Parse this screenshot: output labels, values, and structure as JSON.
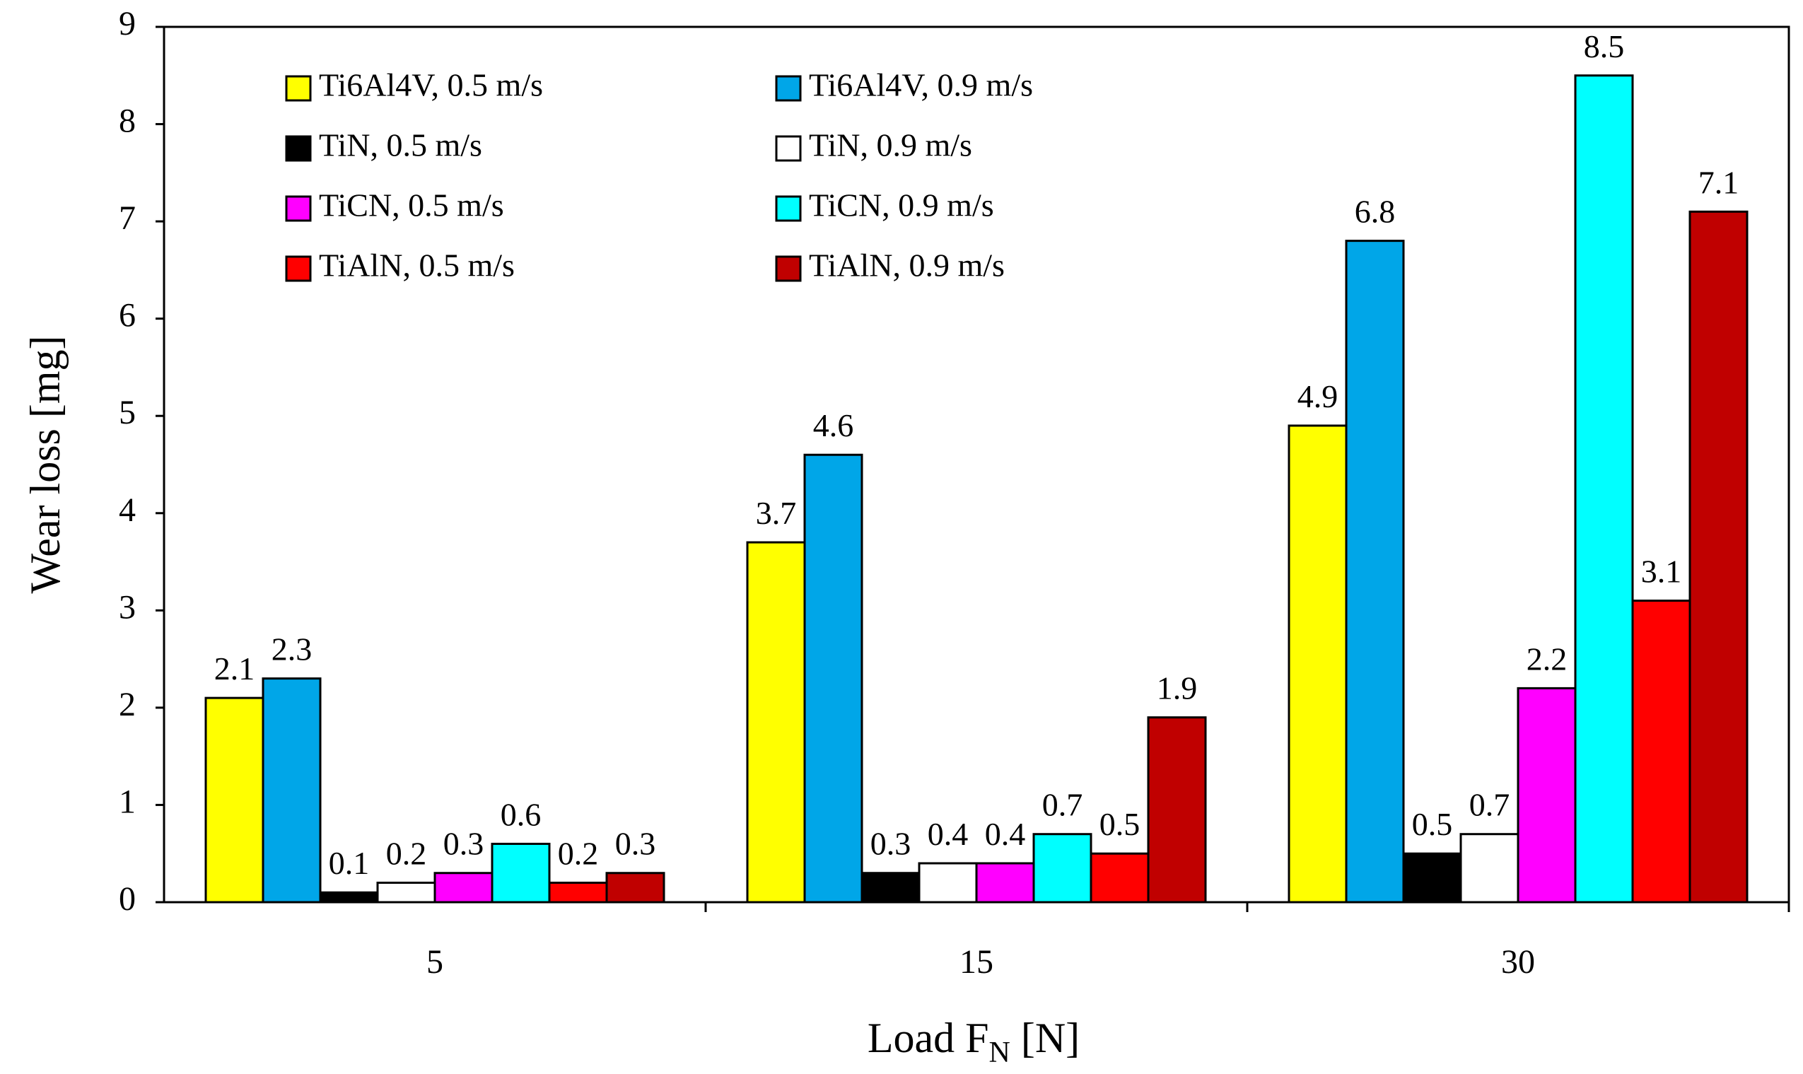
{
  "chart_data": {
    "type": "bar",
    "title": "",
    "xlabel": "Load F",
    "xlabel_subscript": "N",
    "xlabel_suffix": " [N]",
    "ylabel": "Wear loss [mg]",
    "ylim": [
      0,
      9
    ],
    "yticks": [
      "0",
      "1",
      "2",
      "3",
      "4",
      "5",
      "6",
      "7",
      "8",
      "9"
    ],
    "categories": [
      "5",
      "15",
      "30"
    ],
    "grid": false,
    "legend_position": "top-left",
    "series": [
      {
        "name": "Ti6Al4V, 0.5 m/s",
        "color": "#ffff00",
        "values": [
          2.1,
          3.7,
          4.9
        ],
        "labels": [
          "2.1",
          "3.7",
          "4.9"
        ]
      },
      {
        "name": "Ti6Al4V, 0.9 m/s",
        "color": "#00a6e8",
        "values": [
          2.3,
          4.6,
          6.8
        ],
        "labels": [
          "2.3",
          "4.6",
          "6.8"
        ]
      },
      {
        "name": "TiN, 0.5 m/s",
        "color": "#000000",
        "values": [
          0.1,
          0.3,
          0.5
        ],
        "labels": [
          "0.1",
          "0.3",
          "0.5"
        ]
      },
      {
        "name": "TiN, 0.9 m/s",
        "color": "#ffffff",
        "values": [
          0.2,
          0.4,
          0.7
        ],
        "labels": [
          "0.2",
          "0.4",
          "0.7"
        ]
      },
      {
        "name": "TiCN, 0.5 m/s",
        "color": "#ff00ff",
        "values": [
          0.3,
          0.4,
          2.2
        ],
        "labels": [
          "0.3",
          "0.4",
          "2.2"
        ]
      },
      {
        "name": "TiCN, 0.9 m/s",
        "color": "#00ffff",
        "values": [
          0.6,
          0.7,
          8.5
        ],
        "labels": [
          "0.6",
          "0.7",
          "8.5"
        ]
      },
      {
        "name": "TiAlN, 0.5 m/s",
        "color": "#ff0000",
        "values": [
          0.2,
          0.5,
          3.1
        ],
        "labels": [
          "0.2",
          "0.5",
          "3.1"
        ]
      },
      {
        "name": "TiAlN, 0.9 m/s",
        "color": "#c00000",
        "values": [
          0.3,
          1.9,
          7.1
        ],
        "labels": [
          "0.3",
          "1.9",
          "7.1"
        ]
      }
    ]
  }
}
